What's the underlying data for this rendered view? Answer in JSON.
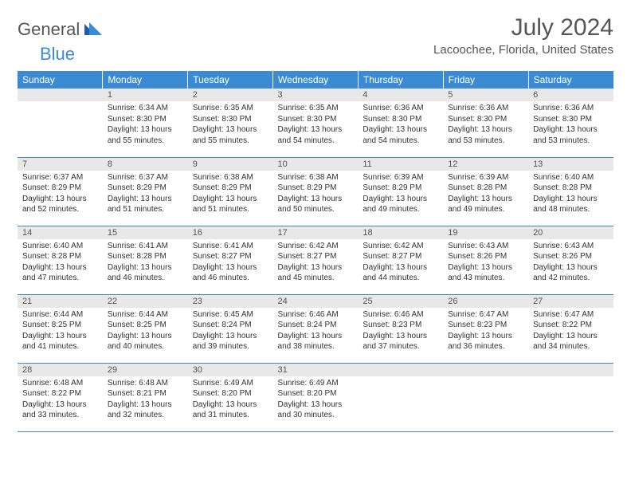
{
  "logo": {
    "general": "General",
    "blue": "Blue"
  },
  "title": "July 2024",
  "location": "Lacoochee, Florida, United States",
  "colors": {
    "header_bg": "#3b8bd4",
    "header_text": "#ffffff",
    "daynum_bg": "#e8e8e8",
    "border": "#3b8bd4",
    "text": "#333333",
    "logo_gray": "#555555",
    "logo_blue": "#3b8bd4"
  },
  "weekdays": [
    "Sunday",
    "Monday",
    "Tuesday",
    "Wednesday",
    "Thursday",
    "Friday",
    "Saturday"
  ],
  "weeks": [
    [
      null,
      {
        "n": "1",
        "sr": "Sunrise: 6:34 AM",
        "ss": "Sunset: 8:30 PM",
        "d1": "Daylight: 13 hours",
        "d2": "and 55 minutes."
      },
      {
        "n": "2",
        "sr": "Sunrise: 6:35 AM",
        "ss": "Sunset: 8:30 PM",
        "d1": "Daylight: 13 hours",
        "d2": "and 55 minutes."
      },
      {
        "n": "3",
        "sr": "Sunrise: 6:35 AM",
        "ss": "Sunset: 8:30 PM",
        "d1": "Daylight: 13 hours",
        "d2": "and 54 minutes."
      },
      {
        "n": "4",
        "sr": "Sunrise: 6:36 AM",
        "ss": "Sunset: 8:30 PM",
        "d1": "Daylight: 13 hours",
        "d2": "and 54 minutes."
      },
      {
        "n": "5",
        "sr": "Sunrise: 6:36 AM",
        "ss": "Sunset: 8:30 PM",
        "d1": "Daylight: 13 hours",
        "d2": "and 53 minutes."
      },
      {
        "n": "6",
        "sr": "Sunrise: 6:36 AM",
        "ss": "Sunset: 8:30 PM",
        "d1": "Daylight: 13 hours",
        "d2": "and 53 minutes."
      }
    ],
    [
      {
        "n": "7",
        "sr": "Sunrise: 6:37 AM",
        "ss": "Sunset: 8:29 PM",
        "d1": "Daylight: 13 hours",
        "d2": "and 52 minutes."
      },
      {
        "n": "8",
        "sr": "Sunrise: 6:37 AM",
        "ss": "Sunset: 8:29 PM",
        "d1": "Daylight: 13 hours",
        "d2": "and 51 minutes."
      },
      {
        "n": "9",
        "sr": "Sunrise: 6:38 AM",
        "ss": "Sunset: 8:29 PM",
        "d1": "Daylight: 13 hours",
        "d2": "and 51 minutes."
      },
      {
        "n": "10",
        "sr": "Sunrise: 6:38 AM",
        "ss": "Sunset: 8:29 PM",
        "d1": "Daylight: 13 hours",
        "d2": "and 50 minutes."
      },
      {
        "n": "11",
        "sr": "Sunrise: 6:39 AM",
        "ss": "Sunset: 8:29 PM",
        "d1": "Daylight: 13 hours",
        "d2": "and 49 minutes."
      },
      {
        "n": "12",
        "sr": "Sunrise: 6:39 AM",
        "ss": "Sunset: 8:28 PM",
        "d1": "Daylight: 13 hours",
        "d2": "and 49 minutes."
      },
      {
        "n": "13",
        "sr": "Sunrise: 6:40 AM",
        "ss": "Sunset: 8:28 PM",
        "d1": "Daylight: 13 hours",
        "d2": "and 48 minutes."
      }
    ],
    [
      {
        "n": "14",
        "sr": "Sunrise: 6:40 AM",
        "ss": "Sunset: 8:28 PM",
        "d1": "Daylight: 13 hours",
        "d2": "and 47 minutes."
      },
      {
        "n": "15",
        "sr": "Sunrise: 6:41 AM",
        "ss": "Sunset: 8:28 PM",
        "d1": "Daylight: 13 hours",
        "d2": "and 46 minutes."
      },
      {
        "n": "16",
        "sr": "Sunrise: 6:41 AM",
        "ss": "Sunset: 8:27 PM",
        "d1": "Daylight: 13 hours",
        "d2": "and 46 minutes."
      },
      {
        "n": "17",
        "sr": "Sunrise: 6:42 AM",
        "ss": "Sunset: 8:27 PM",
        "d1": "Daylight: 13 hours",
        "d2": "and 45 minutes."
      },
      {
        "n": "18",
        "sr": "Sunrise: 6:42 AM",
        "ss": "Sunset: 8:27 PM",
        "d1": "Daylight: 13 hours",
        "d2": "and 44 minutes."
      },
      {
        "n": "19",
        "sr": "Sunrise: 6:43 AM",
        "ss": "Sunset: 8:26 PM",
        "d1": "Daylight: 13 hours",
        "d2": "and 43 minutes."
      },
      {
        "n": "20",
        "sr": "Sunrise: 6:43 AM",
        "ss": "Sunset: 8:26 PM",
        "d1": "Daylight: 13 hours",
        "d2": "and 42 minutes."
      }
    ],
    [
      {
        "n": "21",
        "sr": "Sunrise: 6:44 AM",
        "ss": "Sunset: 8:25 PM",
        "d1": "Daylight: 13 hours",
        "d2": "and 41 minutes."
      },
      {
        "n": "22",
        "sr": "Sunrise: 6:44 AM",
        "ss": "Sunset: 8:25 PM",
        "d1": "Daylight: 13 hours",
        "d2": "and 40 minutes."
      },
      {
        "n": "23",
        "sr": "Sunrise: 6:45 AM",
        "ss": "Sunset: 8:24 PM",
        "d1": "Daylight: 13 hours",
        "d2": "and 39 minutes."
      },
      {
        "n": "24",
        "sr": "Sunrise: 6:46 AM",
        "ss": "Sunset: 8:24 PM",
        "d1": "Daylight: 13 hours",
        "d2": "and 38 minutes."
      },
      {
        "n": "25",
        "sr": "Sunrise: 6:46 AM",
        "ss": "Sunset: 8:23 PM",
        "d1": "Daylight: 13 hours",
        "d2": "and 37 minutes."
      },
      {
        "n": "26",
        "sr": "Sunrise: 6:47 AM",
        "ss": "Sunset: 8:23 PM",
        "d1": "Daylight: 13 hours",
        "d2": "and 36 minutes."
      },
      {
        "n": "27",
        "sr": "Sunrise: 6:47 AM",
        "ss": "Sunset: 8:22 PM",
        "d1": "Daylight: 13 hours",
        "d2": "and 34 minutes."
      }
    ],
    [
      {
        "n": "28",
        "sr": "Sunrise: 6:48 AM",
        "ss": "Sunset: 8:22 PM",
        "d1": "Daylight: 13 hours",
        "d2": "and 33 minutes."
      },
      {
        "n": "29",
        "sr": "Sunrise: 6:48 AM",
        "ss": "Sunset: 8:21 PM",
        "d1": "Daylight: 13 hours",
        "d2": "and 32 minutes."
      },
      {
        "n": "30",
        "sr": "Sunrise: 6:49 AM",
        "ss": "Sunset: 8:20 PM",
        "d1": "Daylight: 13 hours",
        "d2": "and 31 minutes."
      },
      {
        "n": "31",
        "sr": "Sunrise: 6:49 AM",
        "ss": "Sunset: 8:20 PM",
        "d1": "Daylight: 13 hours",
        "d2": "and 30 minutes."
      },
      null,
      null,
      null
    ]
  ]
}
